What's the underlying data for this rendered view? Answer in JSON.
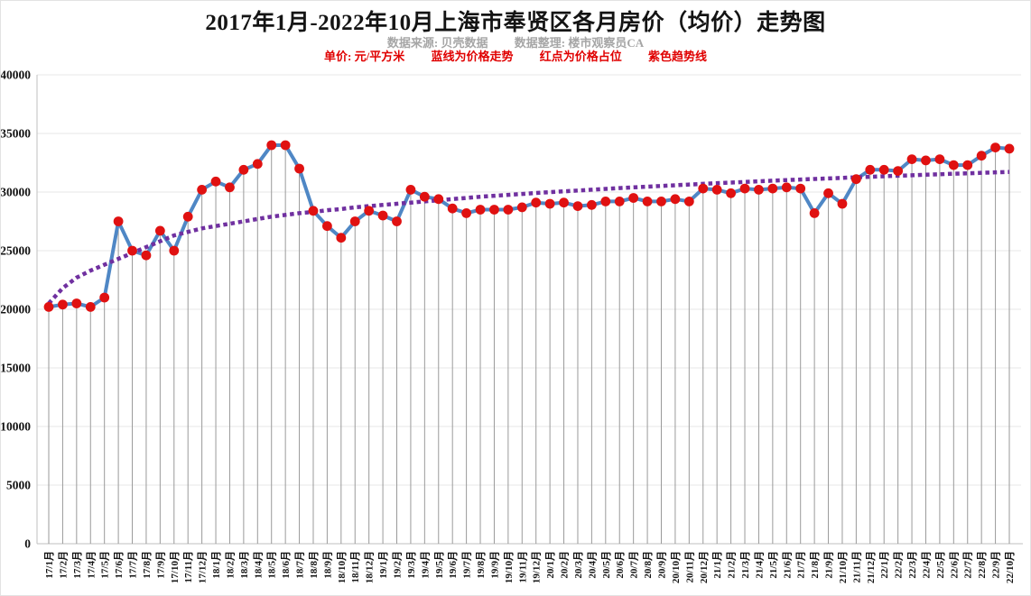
{
  "header": {
    "title": "2017年1月-2022年10月上海市奉贤区各月房价（均价）走势图",
    "source_note": "数据来源: 贝壳数据",
    "curator_note": "数据整理: 楼市观察员CA",
    "legend_notes": {
      "unit": "单价: 元/平方米",
      "blue_line": "蓝线为价格走势",
      "red_dot": "红点为价格占位",
      "purple_line": "紫色趋势线"
    }
  },
  "colors": {
    "price_line": "#4f87c5",
    "marker": "#e01111",
    "trend_line": "#7030a0",
    "dropline": "#9a9a9a",
    "gridline": "#e7e7e7",
    "axis": "#bfbfbf",
    "subtitle_red": "#e00000",
    "subtitle_gray": "#a6a6a6",
    "text": "#141414"
  },
  "chart_data": {
    "type": "line",
    "title": "2017年1月-2022年10月上海市奉贤区各月房价（均价）走势图",
    "xlabel": "",
    "ylabel": "单价(元/平方米)",
    "ylim": [
      0,
      40000
    ],
    "ytick_step": 5000,
    "grid": "horizontal",
    "legend_position": "none",
    "categories": [
      "17/1月",
      "17/2月",
      "17/3月",
      "17/4月",
      "17/5月",
      "17/6月",
      "17/7月",
      "17/8月",
      "17/9月",
      "17/10月",
      "17/11月",
      "17/12月",
      "18/1月",
      "18/2月",
      "18/3月",
      "18/4月",
      "18/5月",
      "18/6月",
      "18/7月",
      "18/8月",
      "18/9月",
      "18/10月",
      "18/11月",
      "18/12月",
      "19/1月",
      "19/2月",
      "19/3月",
      "19/4月",
      "19/5月",
      "19/6月",
      "19/7月",
      "19/8月",
      "19/9月",
      "19/10月",
      "19/11月",
      "19/12月",
      "20/1月",
      "20/2月",
      "20/3月",
      "20/4月",
      "20/5月",
      "20/6月",
      "20/7月",
      "20/8月",
      "20/9月",
      "20/10月",
      "20/11月",
      "20/12月",
      "21/1月",
      "21/2月",
      "21/3月",
      "21/4月",
      "21/5月",
      "21/6月",
      "21/7月",
      "21/8月",
      "21/9月",
      "21/10月",
      "21/11月",
      "21/12月",
      "22/1月",
      "22/2月",
      "22/3月",
      "22/4月",
      "22/5月",
      "22/6月",
      "22/7月",
      "22/8月",
      "22/9月",
      "22/10月"
    ],
    "series": [
      {
        "name": "房价均价(元/平方米)",
        "color": "#4f87c5",
        "marker_color": "#e01111",
        "values": [
          20200,
          20400,
          20500,
          20200,
          21000,
          27500,
          25000,
          24600,
          26700,
          25000,
          27900,
          30200,
          30900,
          30400,
          31900,
          32400,
          34000,
          34000,
          32000,
          28400,
          27100,
          26100,
          27500,
          28400,
          28000,
          27500,
          30200,
          29600,
          29400,
          28600,
          28200,
          28500,
          28500,
          28500,
          28700,
          29100,
          29000,
          29100,
          28800,
          28900,
          29200,
          29200,
          29500,
          29200,
          29200,
          29400,
          29200,
          30300,
          30200,
          29900,
          30300,
          30200,
          30300,
          30400,
          30300,
          28200,
          29900,
          29000,
          31100,
          31900,
          31900,
          31800,
          32800,
          32700,
          32800,
          32300,
          32300,
          33100,
          33800,
          33700
        ]
      },
      {
        "name": "紫色趋势线(对数趋势)",
        "color": "#7030a0",
        "style": "dotted",
        "values": [
          20500,
          21800,
          22700,
          23300,
          23800,
          24300,
          24800,
          25300,
          25800,
          26300,
          26600,
          26900,
          27100,
          27300,
          27500,
          27700,
          27900,
          28050,
          28200,
          28300,
          28450,
          28550,
          28700,
          28800,
          28900,
          29000,
          29100,
          29200,
          29300,
          29400,
          29500,
          29600,
          29680,
          29760,
          29840,
          29920,
          29990,
          30060,
          30130,
          30200,
          30270,
          30340,
          30400,
          30460,
          30520,
          30580,
          30640,
          30700,
          30760,
          30810,
          30860,
          30920,
          30970,
          31020,
          31070,
          31120,
          31160,
          31210,
          31260,
          31300,
          31350,
          31390,
          31430,
          31480,
          31520,
          31560,
          31600,
          31640,
          31680,
          31720
        ]
      }
    ]
  }
}
